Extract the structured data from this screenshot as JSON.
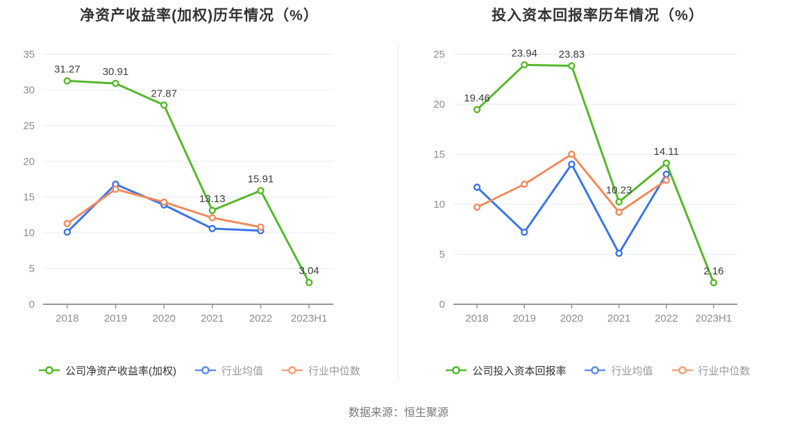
{
  "page": {
    "background": "#ffffff"
  },
  "footer": {
    "source": "数据来源：恒生聚源"
  },
  "colors": {
    "company": "#55b82a",
    "industry_avg": "#3b74e6",
    "industry_median": "#f18a5b",
    "grid_line": "#e8edf6",
    "axis_line": "#969696",
    "tick_text": "#8d8d8d",
    "data_label": "#3d3d3d",
    "title_text": "#333333",
    "legend_main_text": "#333333",
    "legend_dim_text": "#999999",
    "divider": "#ebebeb",
    "footer_text": "#777777",
    "marker_fill": "#ffffff"
  },
  "chart_data": [
    {
      "type": "line",
      "title": "净资产收益率(加权)历年情况（%）",
      "categories": [
        "2018",
        "2019",
        "2020",
        "2021",
        "2022",
        "2023H1"
      ],
      "ylim": [
        0,
        35
      ],
      "yticks": [
        0,
        5,
        10,
        15,
        20,
        25,
        30,
        35
      ],
      "grid": true,
      "legend_position": "bottom",
      "series": [
        {
          "key": "company-roe",
          "name": "公司净资产收益率(加权)",
          "color_key": "company",
          "show_labels": true,
          "values": [
            31.27,
            30.91,
            27.87,
            13.13,
            15.91,
            3.04
          ]
        },
        {
          "key": "industry-avg",
          "name": "行业均值",
          "color_key": "industry_avg",
          "show_labels": false,
          "values": [
            10.1,
            16.8,
            13.9,
            10.6,
            10.3,
            null
          ]
        },
        {
          "key": "industry-median",
          "name": "行业中位数",
          "color_key": "industry_median",
          "show_labels": false,
          "values": [
            11.3,
            16.1,
            14.3,
            12.1,
            10.8,
            null
          ]
        }
      ]
    },
    {
      "type": "line",
      "title": "投入资本回报率历年情况（%）",
      "categories": [
        "2018",
        "2019",
        "2020",
        "2021",
        "2022",
        "2023H1"
      ],
      "ylim": [
        0,
        25
      ],
      "yticks": [
        0,
        5,
        10,
        15,
        20,
        25
      ],
      "grid": true,
      "legend_position": "bottom",
      "series": [
        {
          "key": "company-roic",
          "name": "公司投入资本回报率",
          "color_key": "company",
          "show_labels": true,
          "values": [
            19.46,
            23.94,
            23.83,
            10.23,
            14.11,
            2.16
          ]
        },
        {
          "key": "industry-avg",
          "name": "行业均值",
          "color_key": "industry_avg",
          "show_labels": false,
          "values": [
            11.7,
            7.2,
            14.0,
            5.1,
            13.0,
            null
          ]
        },
        {
          "key": "industry-median",
          "name": "行业中位数",
          "color_key": "industry_median",
          "show_labels": false,
          "values": [
            9.7,
            12.0,
            15.0,
            9.2,
            12.4,
            null
          ]
        }
      ]
    }
  ]
}
